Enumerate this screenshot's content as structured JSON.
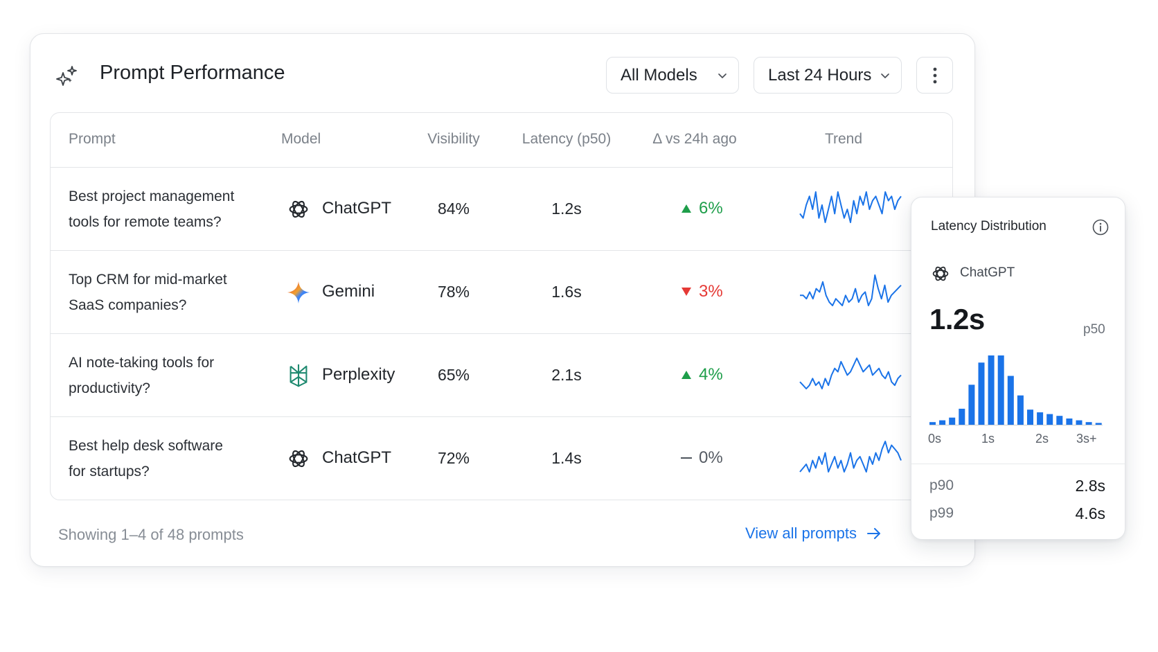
{
  "header": {
    "title": "Prompt Performance"
  },
  "filters": {
    "models_label": "All Models",
    "range_label": "Last 24 Hours"
  },
  "table": {
    "columns": [
      "Prompt",
      "Model",
      "Visibility",
      "Latency (p50)",
      "Δ vs 24h ago",
      "Trend"
    ],
    "rows": [
      {
        "prompt_line1": "Best project management",
        "prompt_line2": "tools for remote teams?",
        "model": "ChatGPT",
        "model_icon": "openai-logo-icon",
        "visibility": "84%",
        "latency": "1.2s",
        "delta": "6%",
        "delta_direction": "up",
        "trend": [
          5,
          4,
          7,
          9,
          6,
          10,
          4,
          7,
          3,
          6,
          9,
          5,
          10,
          7,
          4,
          6,
          3,
          8,
          5,
          9,
          7,
          10,
          6,
          8,
          9,
          7,
          5,
          10,
          8,
          9,
          6,
          8,
          9
        ]
      },
      {
        "prompt_line1": "Top CRM for mid-market",
        "prompt_line2": "SaaS companies?",
        "model": "Gemini",
        "model_icon": "gemini-logo-icon",
        "visibility": "78%",
        "latency": "1.6s",
        "delta": "3%",
        "delta_direction": "down",
        "trend": [
          6,
          6,
          5,
          7,
          5,
          8,
          7,
          10,
          6,
          4,
          3,
          5,
          4,
          3,
          6,
          4,
          5,
          8,
          4,
          6,
          7,
          3,
          5,
          12,
          8,
          5,
          9,
          4,
          6,
          7,
          8,
          9
        ]
      },
      {
        "prompt_line1": "AI note-taking tools for",
        "prompt_line2": "productivity?",
        "model": "Perplexity",
        "model_icon": "perplexity-logo-icon",
        "visibility": "65%",
        "latency": "2.1s",
        "delta": "4%",
        "delta_direction": "up",
        "trend": [
          5,
          4,
          3,
          4,
          6,
          4,
          5,
          3,
          6,
          4,
          7,
          9,
          8,
          11,
          9,
          7,
          8,
          10,
          12,
          10,
          8,
          9,
          10,
          7,
          8,
          9,
          7,
          6,
          8,
          5,
          4,
          6,
          7
        ]
      },
      {
        "prompt_line1": "Best help desk software",
        "prompt_line2": "for startups?",
        "model": "ChatGPT",
        "model_icon": "openai-logo-icon",
        "visibility": "72%",
        "latency": "1.4s",
        "delta": "0%",
        "delta_direction": "flat",
        "trend": [
          4,
          5,
          6,
          4,
          7,
          5,
          8,
          6,
          9,
          4,
          6,
          8,
          5,
          7,
          4,
          6,
          9,
          5,
          7,
          8,
          6,
          4,
          8,
          6,
          9,
          7,
          10,
          12,
          9,
          11,
          10,
          9,
          7
        ]
      }
    ]
  },
  "footer": {
    "showing_text": "Showing 1–4 of 48 prompts",
    "view_all_label": "View all prompts"
  },
  "popover": {
    "title": "Latency Distribution",
    "model": "ChatGPT",
    "value": "1.2s",
    "percentile": "p50",
    "histogram": [
      3,
      5,
      8,
      18,
      45,
      70,
      78,
      78,
      55,
      33,
      17,
      14,
      12,
      10,
      7,
      5,
      3,
      2
    ],
    "axis_labels": [
      "0s",
      "1s",
      "2s",
      "3s+"
    ],
    "stats": [
      {
        "label": "p90",
        "value": "2.8s"
      },
      {
        "label": "p99",
        "value": "4.6s"
      }
    ]
  },
  "colors": {
    "accent": "#1a73e8",
    "up": "#1e9e4a",
    "down": "#e53935",
    "spark": "#1a73e8"
  }
}
